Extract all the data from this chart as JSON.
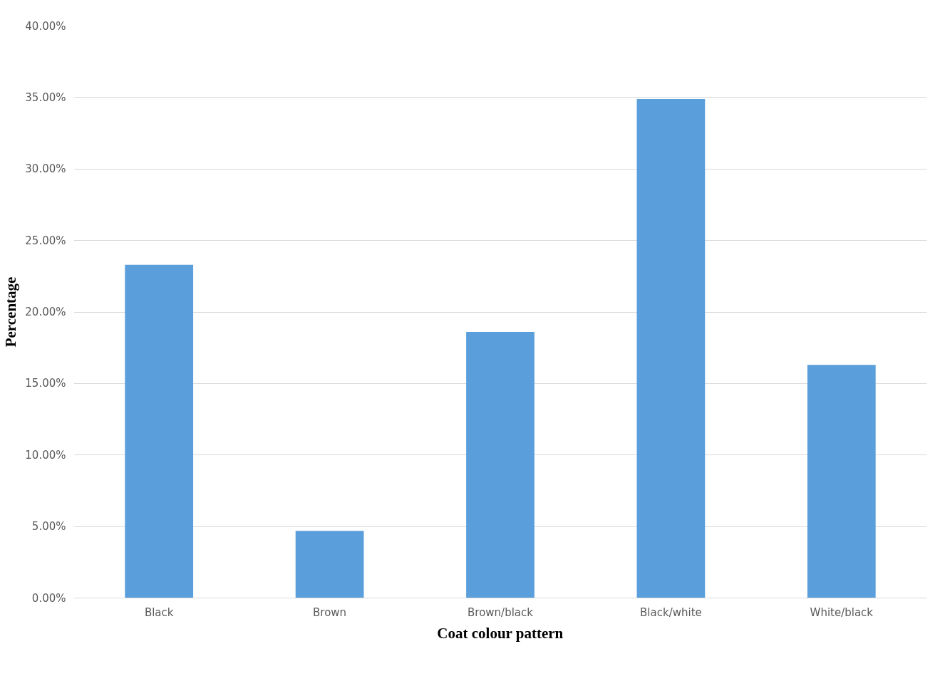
{
  "chart_data": {
    "type": "bar",
    "xlabel": "Coat colour pattern",
    "ylabel": "Percentage",
    "categories": [
      "Black",
      "Brown",
      "Brown/black",
      "Black/white",
      "White/black"
    ],
    "values": [
      23.3,
      4.7,
      18.6,
      34.9,
      16.3
    ],
    "color": "#5a9fdb",
    "ylim": [
      0,
      40
    ],
    "yticks": [
      {
        "value": 0,
        "label": "0.00%"
      },
      {
        "value": 5,
        "label": "5.00%"
      },
      {
        "value": 10,
        "label": "10.00%"
      },
      {
        "value": 15,
        "label": "15.00%"
      },
      {
        "value": 20,
        "label": "20.00%"
      },
      {
        "value": 25,
        "label": "25.00%"
      },
      {
        "value": 30,
        "label": "30.00%"
      },
      {
        "value": 35,
        "label": "35.00%"
      },
      {
        "value": 40,
        "label": "40.00%"
      }
    ],
    "grid": "y"
  }
}
